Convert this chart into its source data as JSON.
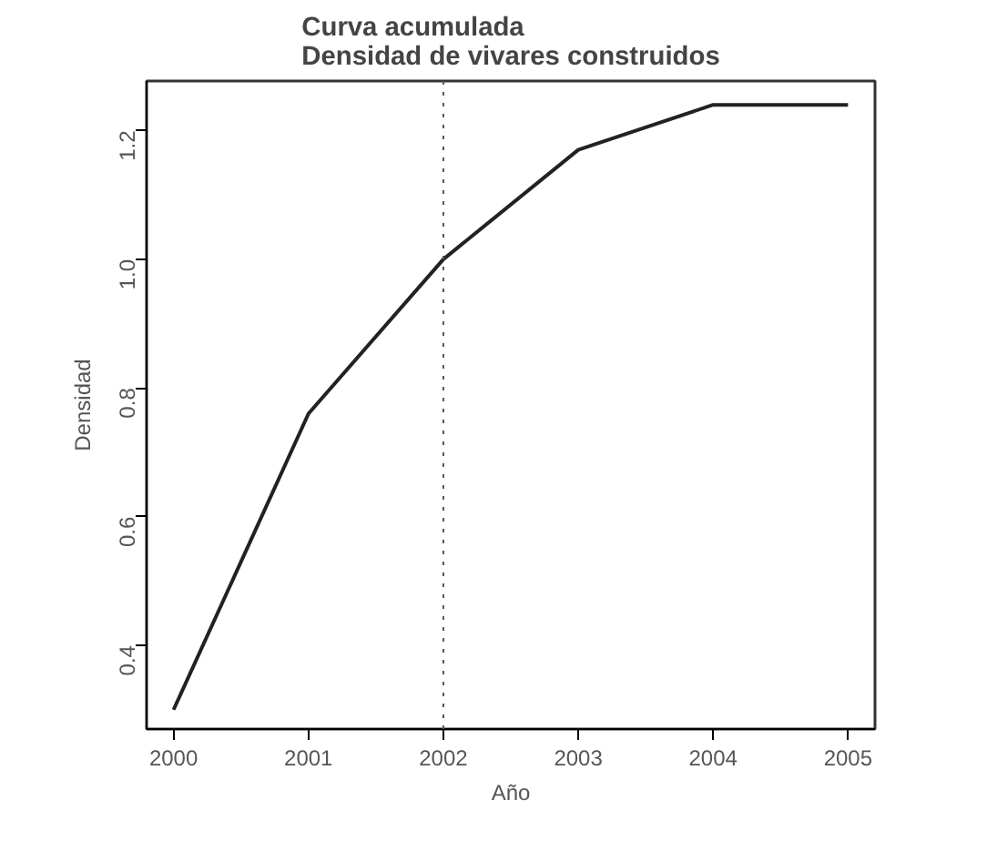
{
  "chart_data": {
    "type": "line",
    "title": "Curva acumulada\nDensidad de vivares construidos",
    "xlabel": "Año",
    "ylabel": "Densidad",
    "x": [
      2000,
      2001,
      2002,
      2003,
      2004,
      2005
    ],
    "series": [
      {
        "color": "#222222",
        "values": [
          0.3,
          0.76,
          1.0,
          1.17,
          1.24,
          1.24
        ]
      }
    ],
    "xlim": [
      1999.8,
      2005.2
    ],
    "ylim": [
      0.27,
      1.277
    ],
    "xticks": [
      2000,
      2001,
      2002,
      2003,
      2004,
      2005
    ],
    "yticks": [
      0.4,
      0.6,
      0.8,
      {
        "value": 1.0,
        "label": "1.0"
      },
      1.2
    ],
    "ref_lines": [
      {
        "axis": "x",
        "value": 2002,
        "label": null,
        "color": "#555555",
        "line_style": "dotted"
      }
    ],
    "grid": false,
    "marker": "none",
    "line_style": "solid"
  }
}
